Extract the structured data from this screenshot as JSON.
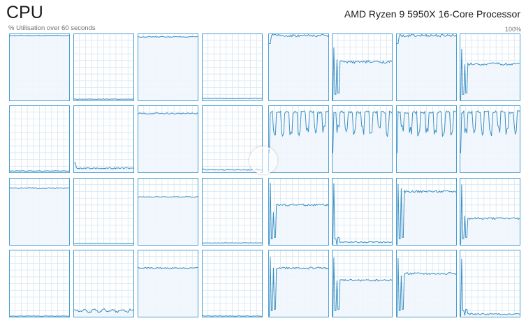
{
  "header": {
    "title": "CPU",
    "processor_name": "AMD Ryzen 9 5950X 16-Core Processor",
    "subtitle": "% Utilisation over 60 seconds",
    "max_label": "100%"
  },
  "colors": {
    "line": "#3a8fc4",
    "fill": "#f0f6fc",
    "grid": "#d7e6f1",
    "border": "#4a9fd4"
  },
  "panels": {
    "left": {
      "graphs": [
        {
          "level": 0.97,
          "shape": "flat",
          "noise": 0.006
        },
        {
          "level": 0.03,
          "shape": "flat",
          "noise": 0.004
        },
        {
          "level": 0.95,
          "shape": "flat",
          "noise": 0.006
        },
        {
          "level": 0.04,
          "shape": "flat",
          "noise": 0.004
        },
        {
          "level": 0.03,
          "shape": "flat",
          "noise": 0.004
        },
        {
          "level": 0.07,
          "shape": "flat",
          "noise": 0.01,
          "start": 0.15
        },
        {
          "level": 0.88,
          "shape": "flat",
          "noise": 0.01
        },
        {
          "level": 0.05,
          "shape": "flat",
          "noise": 0.01,
          "start": 0.06
        },
        {
          "level": 0.85,
          "shape": "flat",
          "noise": 0.008
        },
        {
          "level": 0.03,
          "shape": "flat",
          "noise": 0.004
        },
        {
          "level": 0.72,
          "shape": "flat",
          "noise": 0.006
        },
        {
          "level": 0.04,
          "shape": "flat",
          "noise": 0.004
        },
        {
          "level": 0.02,
          "shape": "flat",
          "noise": 0.004
        },
        {
          "level": 0.1,
          "shape": "wavy",
          "noise": 0.03
        },
        {
          "level": 0.73,
          "shape": "flat",
          "noise": 0.01
        },
        {
          "level": 0.02,
          "shape": "flat",
          "noise": 0.004
        }
      ]
    },
    "right": {
      "graphs": [
        {
          "level": 0.97,
          "shape": "top",
          "noise": 0.02
        },
        {
          "level": 0.58,
          "shape": "spiky",
          "noise": 0.02
        },
        {
          "level": 0.97,
          "shape": "top",
          "noise": 0.02
        },
        {
          "level": 0.55,
          "shape": "spiky",
          "noise": 0.02
        },
        {
          "level": 0.9,
          "shape": "pulse",
          "noise": 0.04
        },
        {
          "level": 0.9,
          "shape": "pulse",
          "noise": 0.04
        },
        {
          "level": 0.9,
          "shape": "pulse",
          "noise": 0.04
        },
        {
          "level": 0.9,
          "shape": "pulse",
          "noise": 0.04
        },
        {
          "level": 0.6,
          "shape": "spiky",
          "noise": 0.015
        },
        {
          "level": 0.05,
          "shape": "spiky",
          "noise": 0.01
        },
        {
          "level": 0.8,
          "shape": "spiky",
          "noise": 0.015
        },
        {
          "level": 0.4,
          "shape": "spiky",
          "noise": 0.015
        },
        {
          "level": 0.73,
          "shape": "spiky",
          "noise": 0.015
        },
        {
          "level": 0.55,
          "shape": "spiky",
          "noise": 0.015
        },
        {
          "level": 0.65,
          "shape": "spiky",
          "noise": 0.015
        },
        {
          "level": 0.05,
          "shape": "spiky",
          "noise": 0.01
        }
      ]
    }
  }
}
